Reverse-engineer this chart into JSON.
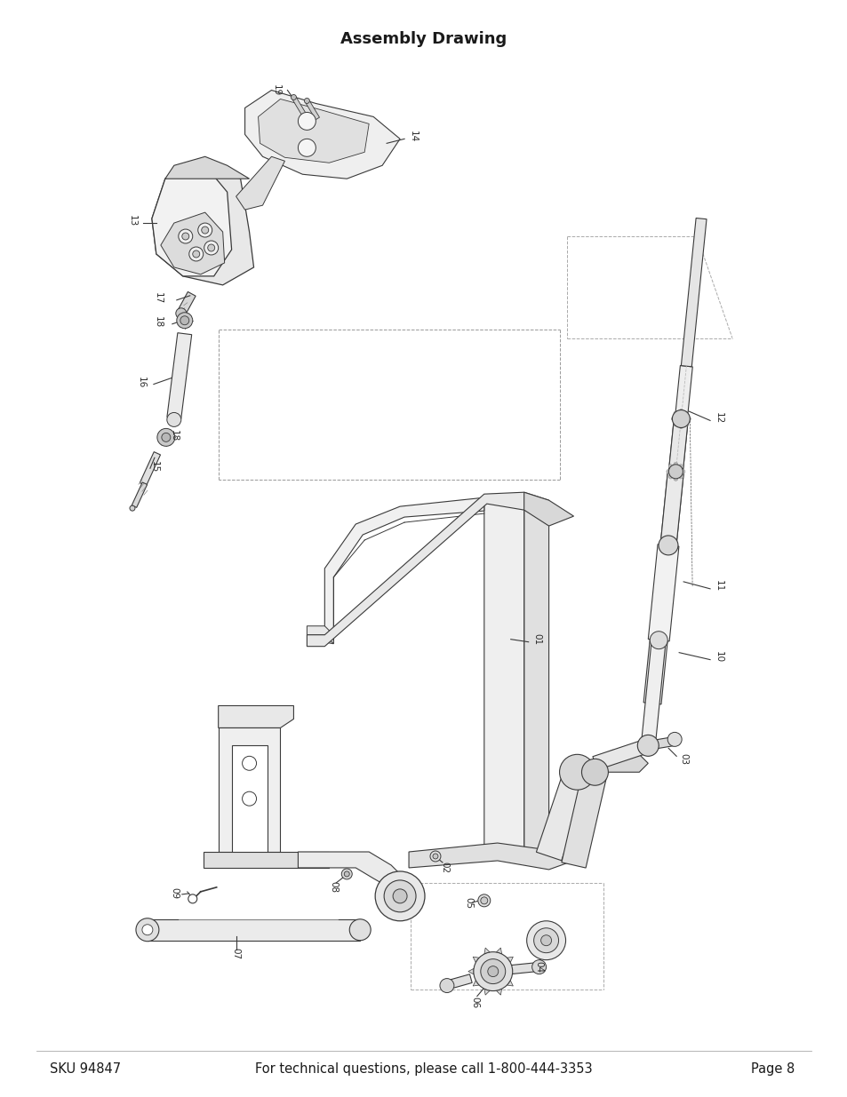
{
  "title": "Assembly Drawing",
  "title_fontsize": 13,
  "title_bold": true,
  "footer_left": "SKU 94847",
  "footer_center": "For technical questions, please call 1-800-444-3353",
  "footer_right": "Page 8",
  "footer_fontsize": 10.5,
  "bg_color": "#ffffff",
  "line_color": "#3a3a3a",
  "dark_line": "#1a1a1a",
  "label_fontsize": 8,
  "fig_width": 9.54,
  "fig_height": 12.35,
  "dpi": 100
}
